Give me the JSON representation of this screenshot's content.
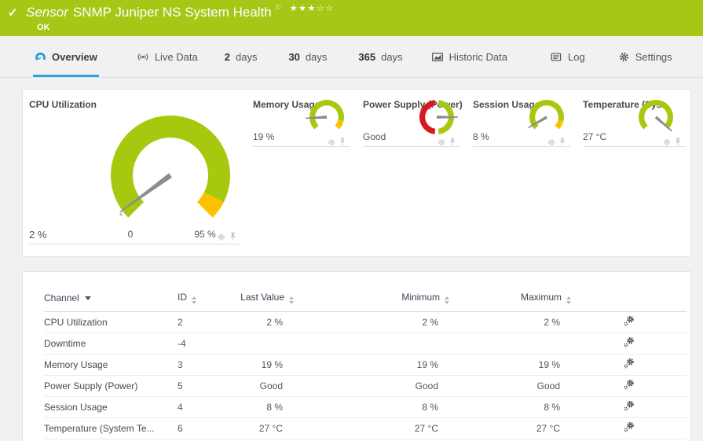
{
  "header": {
    "kind_label": "Sensor",
    "title": "SNMP Juniper NS System Health",
    "status": "OK",
    "check_glyph": "✓",
    "flag_glyph": "⚐",
    "stars": "★★★☆☆",
    "color": "#a6c716"
  },
  "tabs": [
    {
      "label": "Overview",
      "active": true
    },
    {
      "label": "Live Data",
      "active": false
    },
    {
      "num": "2",
      "label": "days",
      "active": false
    },
    {
      "num": "30",
      "label": "days",
      "active": false
    },
    {
      "num": "365",
      "label": "days",
      "active": false
    },
    {
      "label": "Historic Data",
      "active": false
    },
    {
      "label": "Log",
      "active": false
    },
    {
      "label": "Settings",
      "active": false
    }
  ],
  "gauges": {
    "panels": [
      {
        "key": "cpu",
        "title": "CPU Utilization",
        "value": "2 %",
        "size": "big",
        "scale_min_label": "0",
        "scale_max_label": "95 %",
        "marker_label": "x",
        "needle_deg": -126,
        "arcs": [
          {
            "from": -135,
            "to": 117,
            "color": "#a6c90f"
          },
          {
            "from": 117,
            "to": 135,
            "color": "#fdc100"
          }
        ]
      },
      {
        "key": "memory",
        "title": "Memory Usage",
        "value": "19 %",
        "size": "small",
        "needle_deg": -93,
        "arcs": [
          {
            "from": -135,
            "to": 103,
            "color": "#a6c90f"
          },
          {
            "from": 103,
            "to": 135,
            "color": "#fdc100"
          }
        ]
      },
      {
        "key": "power",
        "title": "Power Supply (Power)",
        "value": "Good",
        "size": "small",
        "needle_deg": 90,
        "arcs": [
          {
            "from": 7,
            "to": 173,
            "color": "#a6c90f"
          },
          {
            "from": 187,
            "to": 353,
            "color": "#d6191f"
          }
        ]
      },
      {
        "key": "session",
        "title": "Session Usage",
        "value": "8 %",
        "size": "small",
        "needle_deg": -120,
        "arcs": [
          {
            "from": -135,
            "to": 103,
            "color": "#a6c90f"
          },
          {
            "from": 103,
            "to": 135,
            "color": "#fdc100"
          }
        ]
      },
      {
        "key": "temperature",
        "title": "Temperature (System ...",
        "value": "27 °C",
        "size": "small",
        "needle_deg": 131,
        "arcs": [
          {
            "from": -135,
            "to": 135,
            "color": "#a6c90f"
          }
        ]
      }
    ],
    "needle_color": "#8d8d8d"
  },
  "table": {
    "columns": [
      {
        "label": "Channel",
        "sorted": "desc"
      },
      {
        "label": "ID"
      },
      {
        "label": "Last Value"
      },
      {
        "label": "Minimum"
      },
      {
        "label": "Maximum"
      }
    ],
    "rows": [
      {
        "channel": "CPU Utilization",
        "id": "2",
        "last": "2 %",
        "min": "2 %",
        "max": "2 %"
      },
      {
        "channel": "Downtime",
        "id": "-4",
        "last": "",
        "min": "",
        "max": ""
      },
      {
        "channel": "Memory Usage",
        "id": "3",
        "last": "19 %",
        "min": "19 %",
        "max": "19 %"
      },
      {
        "channel": "Power Supply (Power)",
        "id": "5",
        "last": "Good",
        "min": "Good",
        "max": "Good"
      },
      {
        "channel": "Session Usage",
        "id": "4",
        "last": "8 %",
        "min": "8 %",
        "max": "8 %"
      },
      {
        "channel": "Temperature (System Te...",
        "id": "6",
        "last": "27 °C",
        "min": "27 °C",
        "max": "27 °C"
      }
    ]
  },
  "colors": {
    "header_green": "#a6c716",
    "gauge_green": "#a6c90f",
    "gauge_yellow": "#fdc100",
    "gauge_red": "#d6191f",
    "accent_blue": "#2aa4dc"
  }
}
